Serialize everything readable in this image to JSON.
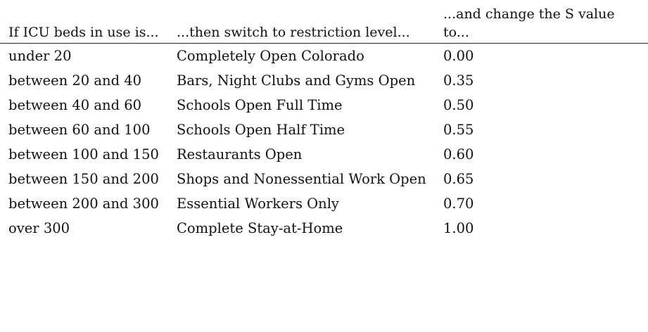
{
  "table": {
    "headers": [
      "If ICU beds in use is...",
      "...then switch to restriction level...",
      "...and change the S value to..."
    ],
    "rows": [
      {
        "icu_beds": "under 20",
        "restriction_level": "Completely Open Colorado",
        "s_value": "0.00"
      },
      {
        "icu_beds": "between 20 and 40",
        "restriction_level": "Bars, Night Clubs and Gyms Open",
        "s_value": "0.35"
      },
      {
        "icu_beds": "between 40 and 60",
        "restriction_level": "Schools Open Full Time",
        "s_value": "0.50"
      },
      {
        "icu_beds": "between 60 and 100",
        "restriction_level": "Schools Open Half Time",
        "s_value": "0.55"
      },
      {
        "icu_beds": "between 100 and 150",
        "restriction_level": "Restaurants Open",
        "s_value": "0.60"
      },
      {
        "icu_beds": "between 150 and 200",
        "restriction_level": "Shops and Nonessential Work Open",
        "s_value": "0.65"
      },
      {
        "icu_beds": "between 200 and 300",
        "restriction_level": "Essential Workers Only",
        "s_value": "0.70"
      },
      {
        "icu_beds": "over 300",
        "restriction_level": "Complete Stay-at-Home",
        "s_value": "1.00"
      }
    ]
  }
}
